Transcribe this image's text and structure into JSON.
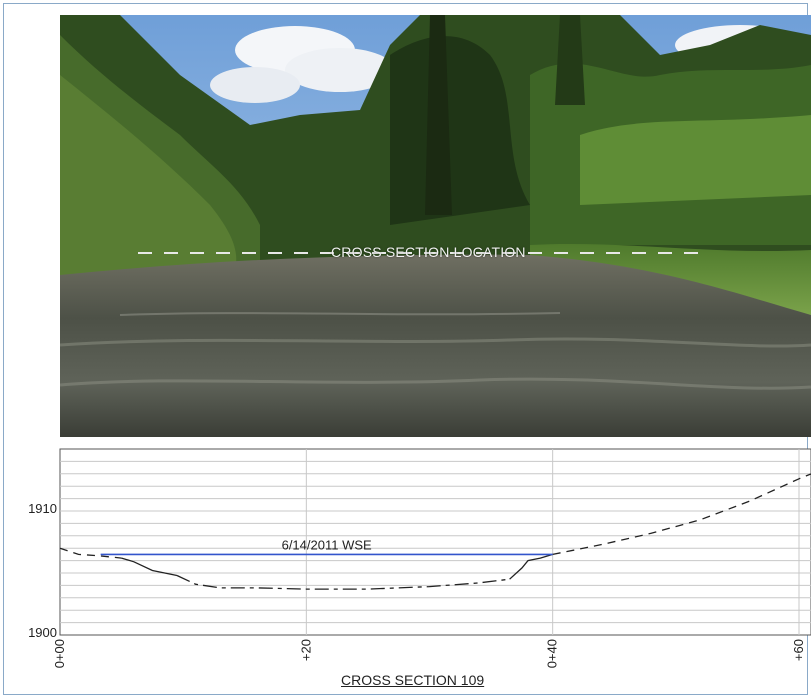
{
  "photo": {
    "caption": "CROSS SECTION LOCATION"
  },
  "chart_data": {
    "type": "line",
    "title": "CROSS SECTION 109",
    "xlabel": "",
    "ylabel": "",
    "xlim": [
      0,
      60
    ],
    "ylim": [
      1900,
      1915
    ],
    "x_ticks": [
      0,
      20,
      40,
      60
    ],
    "x_tick_labels": [
      "0+00",
      "+20",
      "0+40",
      "+60"
    ],
    "y_ticks": [
      1900,
      1910
    ],
    "y_tick_labels": [
      "1900",
      "1910"
    ],
    "grid": true,
    "series": [
      {
        "style": "dashed",
        "color": "#222222",
        "x": [
          0,
          1.5,
          3,
          5
        ],
        "y": [
          1907.0,
          1906.5,
          1906.4,
          1906.2
        ]
      },
      {
        "style": "solid",
        "color": "#222222",
        "x": [
          5,
          6,
          7.5,
          9.5
        ],
        "y": [
          1906.2,
          1905.9,
          1905.2,
          1904.8
        ]
      },
      {
        "style": "dashdot",
        "color": "#222222",
        "x": [
          9.5,
          11,
          13,
          16,
          20,
          25,
          30,
          34,
          36.5
        ],
        "y": [
          1904.8,
          1904.1,
          1903.8,
          1903.8,
          1903.7,
          1903.7,
          1903.9,
          1904.2,
          1904.5
        ]
      },
      {
        "style": "solid",
        "color": "#222222",
        "x": [
          36.5,
          37.5,
          38,
          39,
          40
        ],
        "y": [
          1904.5,
          1905.4,
          1906.0,
          1906.2,
          1906.5
        ]
      },
      {
        "style": "dashed",
        "color": "#222222",
        "x": [
          40,
          44,
          48,
          52,
          56,
          60,
          61
        ],
        "y": [
          1906.5,
          1907.3,
          1908.2,
          1909.3,
          1910.8,
          1912.6,
          1913.0
        ]
      }
    ],
    "wse": {
      "label": "6/14/2011 WSE",
      "color": "#3355cc",
      "x": [
        3.3,
        40
      ],
      "y": 1906.5
    }
  }
}
